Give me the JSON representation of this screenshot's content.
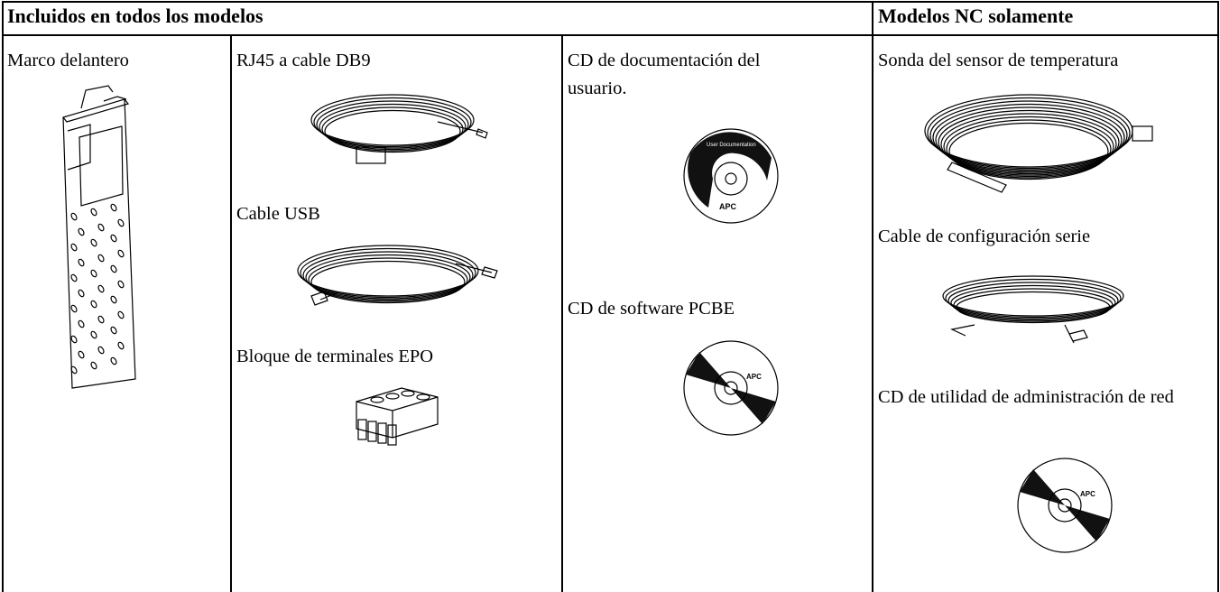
{
  "table": {
    "headers": [
      "Incluidos en todos los modelos",
      "Modelos NC solamente"
    ],
    "cells": [
      [
        "Marco delantero"
      ],
      [
        "RJ45 a cable DB9",
        "Cable USB",
        "Bloque de terminales EPO"
      ],
      [
        "CD de documentación del usuario.",
        "CD de software PCBE"
      ],
      [
        "Sonda del sensor de temperatura",
        "Cable de configuración serie",
        "CD de utilidad de administración de red"
      ]
    ]
  },
  "images": {
    "cd_label": "User Documentation",
    "brand": "APC"
  }
}
